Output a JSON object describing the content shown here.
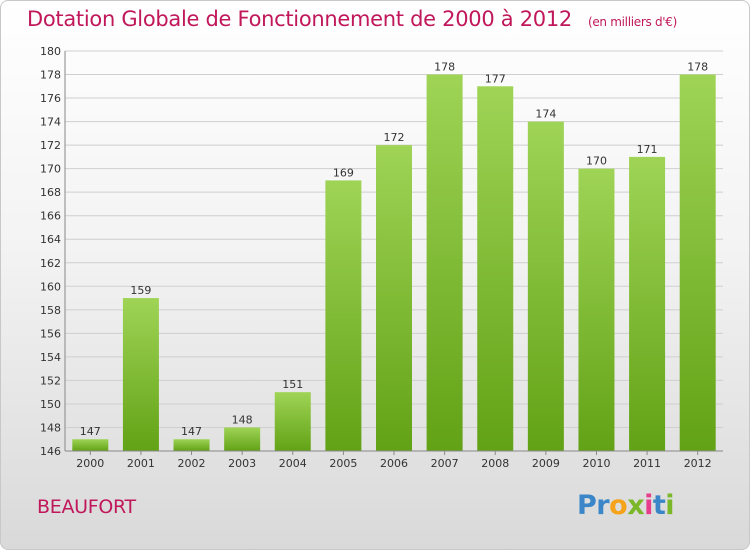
{
  "header": {
    "title": "Dotation Globale de Fonctionnement de 2000 à 2012",
    "unit": "(en milliers d'€)"
  },
  "commune": "BEAUFORT",
  "logo": {
    "text": "Proxiti",
    "letters": [
      "P",
      "r",
      "o",
      "x",
      "i",
      "t",
      "i"
    ]
  },
  "colors": {
    "title": "#c0185a",
    "bar_light": "#9fd456",
    "bar_dark": "#62a216",
    "grid": "#cfcfcf",
    "logo": [
      "#3a86c8",
      "#3a86c8",
      "#f5a31a",
      "#7ab829",
      "#e63e8c",
      "#3a86c8",
      "#7ab829"
    ]
  },
  "chart_data": {
    "type": "bar",
    "title": "Dotation Globale de Fonctionnement de 2000 à 2012",
    "subtitle": "(en milliers d'€)",
    "xlabel": "",
    "ylabel": "",
    "categories": [
      "2000",
      "2001",
      "2002",
      "2003",
      "2004",
      "2005",
      "2006",
      "2007",
      "2008",
      "2009",
      "2010",
      "2011",
      "2012"
    ],
    "values": [
      147,
      159,
      147,
      148,
      151,
      169,
      172,
      178,
      177,
      174,
      170,
      171,
      178
    ],
    "ylim": [
      146,
      180
    ],
    "yticks": [
      146,
      148,
      150,
      152,
      154,
      156,
      158,
      160,
      162,
      164,
      166,
      168,
      170,
      172,
      174,
      176,
      178,
      180
    ],
    "grid": true,
    "data_labels": true
  }
}
